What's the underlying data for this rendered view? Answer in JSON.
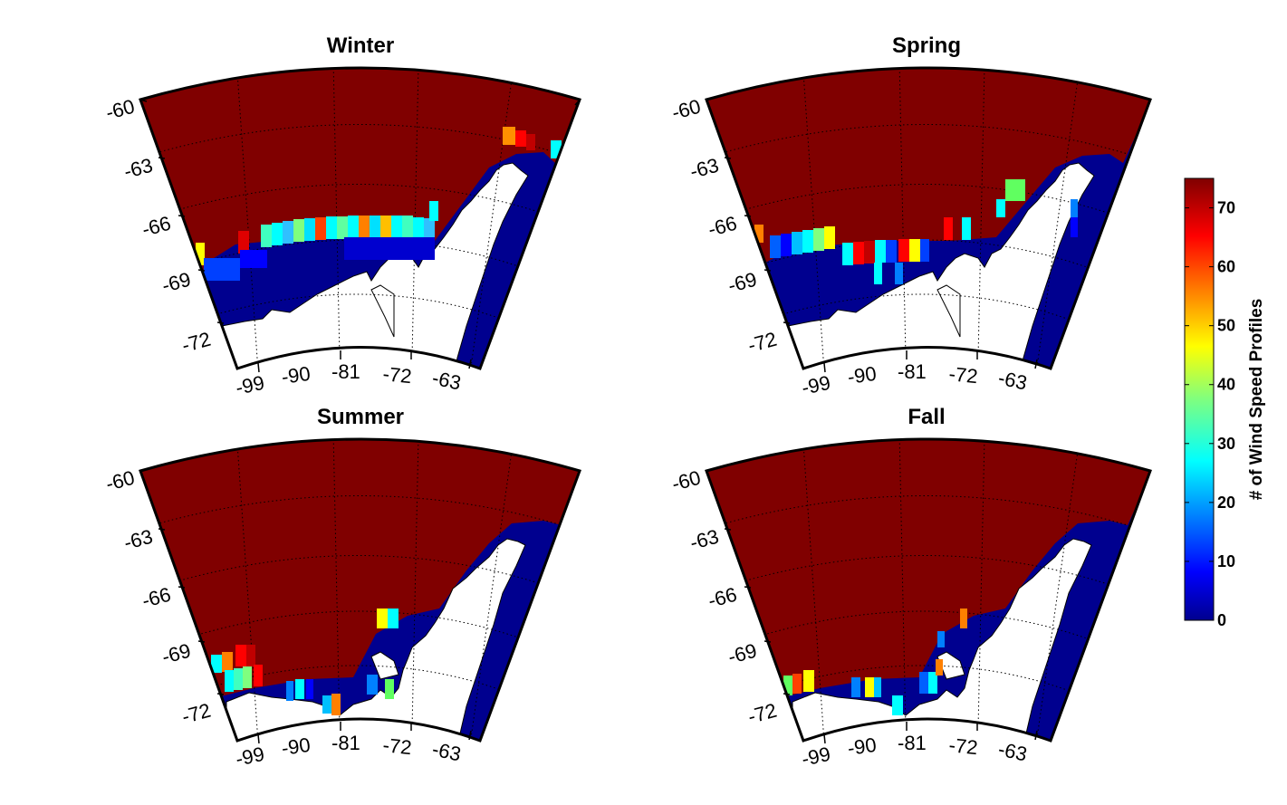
{
  "colors": {
    "ocean_high": "#800000",
    "ice_low": "#00008f",
    "land": "#ffffff",
    "frame": "#000000"
  },
  "colormap": "jet",
  "maps": [
    {
      "title": "Winter",
      "lat_labels": [
        "-60",
        "-63",
        "-66",
        "-69",
        "-72"
      ],
      "lon_labels": [
        "-99",
        "-90",
        "-81",
        "-72",
        "-63"
      ]
    },
    {
      "title": "Spring",
      "lat_labels": [
        "-60",
        "-63",
        "-66",
        "-69",
        "-72"
      ],
      "lon_labels": [
        "-99",
        "-90",
        "-81",
        "-72",
        "-63"
      ]
    },
    {
      "title": "Summer",
      "lat_labels": [
        "-60",
        "-63",
        "-66",
        "-69",
        "-72"
      ],
      "lon_labels": [
        "-99",
        "-90",
        "-81",
        "-72",
        "-63"
      ]
    },
    {
      "title": "Fall",
      "lat_labels": [
        "-60",
        "-63",
        "-66",
        "-69",
        "-72"
      ],
      "lon_labels": [
        "-99",
        "-90",
        "-81",
        "-72",
        "-63"
      ]
    }
  ],
  "colorbar": {
    "label": "# of Wind Speed Profiles",
    "ticks": [
      "0",
      "10",
      "20",
      "30",
      "40",
      "50",
      "60",
      "70"
    ],
    "tick_values": [
      0,
      10,
      20,
      30,
      40,
      50,
      60,
      70
    ],
    "min": 0,
    "max": 75
  }
}
